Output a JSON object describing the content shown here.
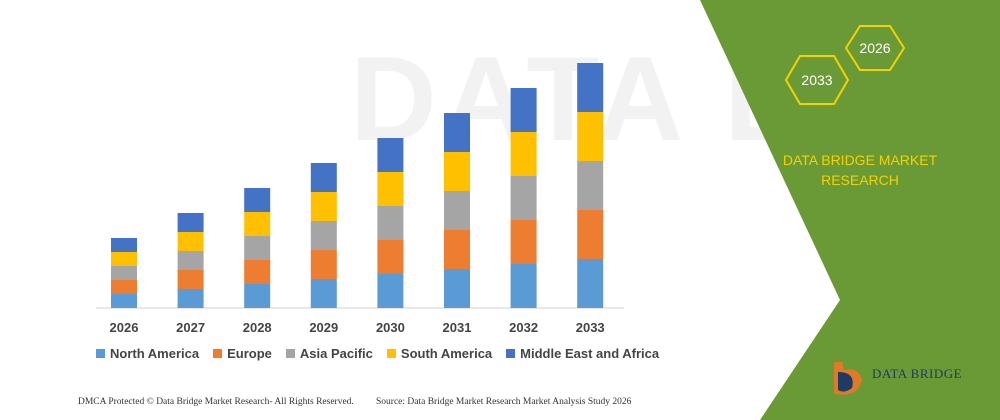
{
  "chart_data": {
    "type": "bar",
    "stacked": true,
    "categories": [
      "2026",
      "2027",
      "2028",
      "2029",
      "2030",
      "2031",
      "2032",
      "2033"
    ],
    "series": [
      {
        "name": "North America",
        "color": "#5b9bd5",
        "values": [
          14,
          19,
          24,
          29,
          34,
          39,
          44,
          49
        ]
      },
      {
        "name": "Europe",
        "color": "#ed7d31",
        "values": [
          14,
          19,
          24,
          29,
          34,
          39,
          44,
          49
        ]
      },
      {
        "name": "Asia Pacific",
        "color": "#a5a5a5",
        "values": [
          14,
          19,
          24,
          29,
          34,
          39,
          44,
          49
        ]
      },
      {
        "name": "South America",
        "color": "#ffc000",
        "values": [
          14,
          19,
          24,
          29,
          34,
          39,
          44,
          49
        ]
      },
      {
        "name": "Middle East and Africa",
        "color": "#4472c4",
        "values": [
          14,
          19,
          24,
          29,
          34,
          39,
          44,
          49
        ]
      }
    ],
    "legend_position": "bottom",
    "grid": false
  },
  "banner": {
    "hex_left_label": "2033",
    "hex_right_label": "2026",
    "brand_title": "DATA BRIDGE MARKET RESEARCH",
    "background_color": "#6a9a35",
    "accent_color": "#f4d200"
  },
  "footer": {
    "left_text": "DMCA Protected © Data Bridge Market Research- All Rights Reserved.",
    "right_text": "Source: Data Bridge Market Research Market Analysis Study 2026"
  },
  "logo": {
    "text": "DATA BRIDGE"
  },
  "watermark": {
    "text": "DATA BRI"
  }
}
